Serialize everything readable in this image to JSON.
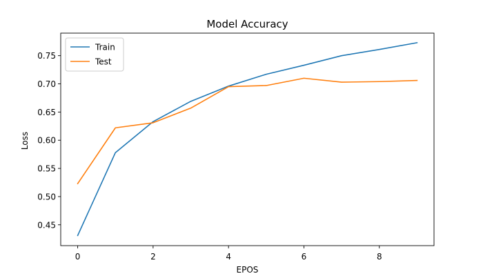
{
  "chart_data": {
    "type": "line",
    "title": "Model Accuracy",
    "xlabel": "EPOS",
    "ylabel": "Loss",
    "xlim": [
      -0.45,
      9.45
    ],
    "ylim": [
      0.413,
      0.79
    ],
    "x_ticks": [
      0,
      2,
      4,
      6,
      8
    ],
    "y_ticks": [
      0.45,
      0.5,
      0.55,
      0.6,
      0.65,
      0.7,
      0.75
    ],
    "x": [
      0,
      1,
      2,
      3,
      4,
      5,
      6,
      7,
      8,
      9
    ],
    "series": [
      {
        "name": "Train",
        "color": "#1f77b4",
        "values": [
          0.431,
          0.578,
          0.633,
          0.669,
          0.696,
          0.717,
          0.733,
          0.75,
          0.761,
          0.773
        ]
      },
      {
        "name": "Test",
        "color": "#ff7f0e",
        "values": [
          0.523,
          0.622,
          0.631,
          0.657,
          0.695,
          0.697,
          0.71,
          0.703,
          0.704,
          0.706
        ]
      }
    ],
    "grid": false,
    "legend_position": "top-left"
  }
}
